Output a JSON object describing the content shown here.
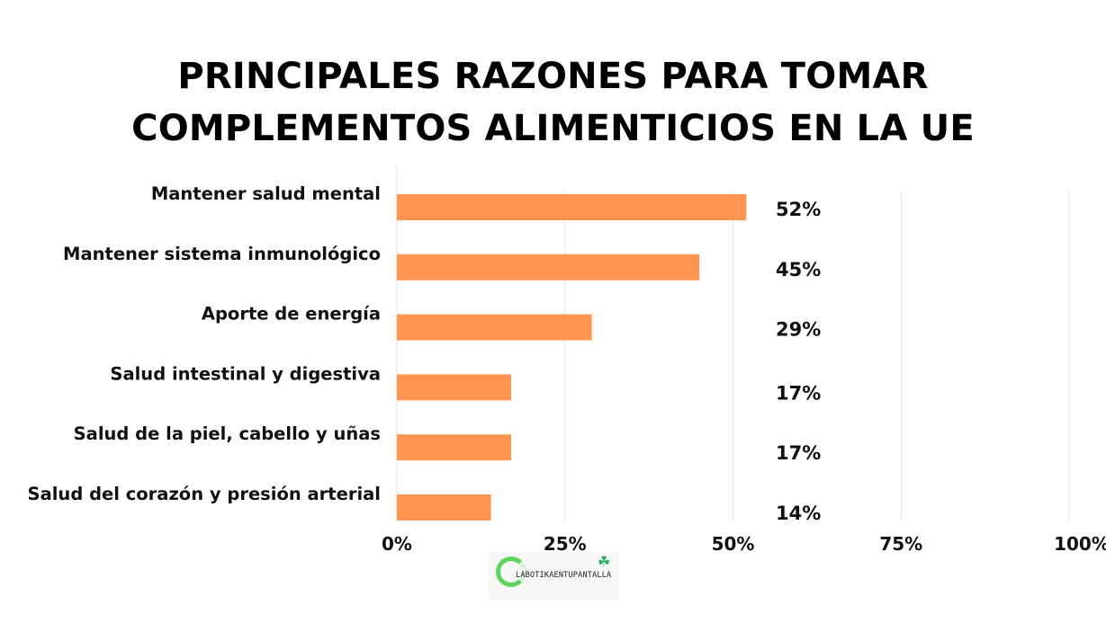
{
  "chart_data": {
    "type": "bar",
    "orientation": "horizontal",
    "title": [
      "PRINCIPALES RAZONES PARA TOMAR",
      "COMPLEMENTOS ALIMENTICIOS EN LA UE"
    ],
    "categories": [
      "Mantener salud mental",
      "Mantener sistema inmunológico",
      "Aporte de energía",
      "Salud intestinal y digestiva",
      "Salud de la piel, cabello y uñas",
      "Salud del corazón y presión arterial"
    ],
    "values": [
      52,
      45,
      29,
      17,
      17,
      14
    ],
    "value_labels": [
      "52%",
      "45%",
      "29%",
      "17%",
      "17%",
      "14%"
    ],
    "xlim": [
      0,
      100
    ],
    "xticks": [
      0,
      25,
      50,
      75,
      100
    ],
    "xtick_labels": [
      "0%",
      "25%",
      "50%",
      "75%",
      "100%"
    ],
    "grid": "vertical",
    "bar_color": "#ff9550",
    "xlabel": "",
    "ylabel": ""
  },
  "logo": {
    "text": "LABOTIKAENTUPANTALLA",
    "icon": "leaf-icon",
    "ring_color": "#5fd35f"
  }
}
